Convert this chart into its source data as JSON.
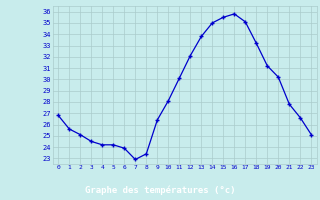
{
  "hours": [
    0,
    1,
    2,
    3,
    4,
    5,
    6,
    7,
    8,
    9,
    10,
    11,
    12,
    13,
    14,
    15,
    16,
    17,
    18,
    19,
    20,
    21,
    22,
    23
  ],
  "temperatures": [
    26.8,
    25.6,
    25.1,
    24.5,
    24.2,
    24.2,
    23.9,
    22.9,
    23.4,
    26.4,
    28.1,
    30.1,
    32.1,
    33.8,
    35.0,
    35.5,
    35.8,
    35.1,
    33.2,
    31.2,
    30.2,
    27.8,
    26.6,
    25.1
  ],
  "xlabel": "Graphe des températures (°c)",
  "ylim": [
    22.5,
    36.5
  ],
  "xlim": [
    -0.5,
    23.5
  ],
  "yticks": [
    23,
    24,
    25,
    26,
    27,
    28,
    29,
    30,
    31,
    32,
    33,
    34,
    35,
    36
  ],
  "xticks": [
    0,
    1,
    2,
    3,
    4,
    5,
    6,
    7,
    8,
    9,
    10,
    11,
    12,
    13,
    14,
    15,
    16,
    17,
    18,
    19,
    20,
    21,
    22,
    23
  ],
  "line_color": "#0000cc",
  "marker_color": "#0000cc",
  "bg_color": "#c8ecec",
  "grid_color": "#aacccc",
  "label_bar_color": "#0000aa",
  "label_text_color": "#ffffff",
  "tick_color": "#0000cc"
}
